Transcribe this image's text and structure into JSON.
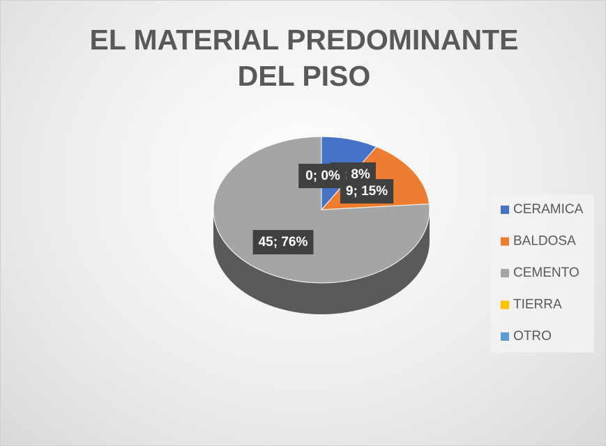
{
  "chart_data": {
    "type": "pie",
    "title": "EL MATERIAL PREDOMINANTE DEL PISO",
    "categories": [
      "CERAMICA",
      "BALDOSA",
      "CEMENTO",
      "TIERRA",
      "OTRO"
    ],
    "values": [
      5,
      9,
      45,
      0,
      0
    ],
    "value_labels": [
      "5; 8%",
      "9; 15%",
      "45; 76%",
      "0; 0%",
      "0; 0%"
    ],
    "colors": [
      "#4472c4",
      "#ed7d31",
      "#a5a5a5",
      "#ffc000",
      "#5b9bd5"
    ],
    "legend": "right"
  }
}
